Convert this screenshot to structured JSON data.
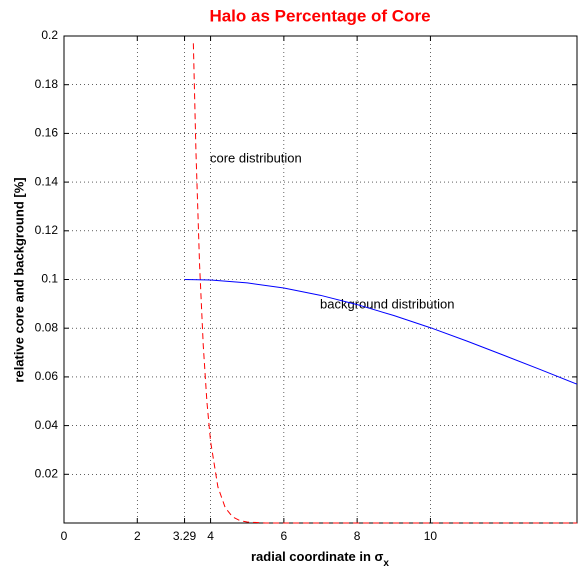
{
  "chart_data": {
    "type": "line",
    "title": "Halo as Percentage of Core",
    "xlabel": {
      "text": "radial coordinate in σ",
      "subscript": "x"
    },
    "ylabel": "relative core and background [%]",
    "xlim": [
      0,
      14
    ],
    "ylim": [
      0,
      0.2
    ],
    "xticks": [
      0,
      2,
      3.29,
      4,
      6,
      8,
      10
    ],
    "yticks": [
      0.02,
      0.04,
      0.06,
      0.08,
      0.1,
      0.12,
      0.14,
      0.16,
      0.18,
      0.2
    ],
    "grid": true,
    "annotations": [
      "core distribution",
      "background distribution"
    ],
    "series": [
      {
        "color": "#ff0000",
        "dash": true,
        "x": [
          3.53,
          3.6,
          3.7,
          3.8,
          3.9,
          4.0,
          4.2,
          4.4,
          4.6,
          4.8,
          5,
          5.5,
          6,
          8,
          10,
          12,
          14
        ],
        "values": [
          0.197,
          0.153,
          0.106,
          0.073,
          0.0498,
          0.0335,
          0.0148,
          0.0063,
          0.0025,
          0.001,
          0.0004,
          0,
          0,
          0,
          0,
          0,
          0
        ]
      },
      {
        "color": "#0000ff",
        "dash": false,
        "x": [
          3.29,
          4,
          5,
          6,
          7,
          8,
          9,
          10,
          11,
          12,
          13,
          14
        ],
        "values": [
          0.1,
          0.0998,
          0.0986,
          0.0965,
          0.0935,
          0.0897,
          0.0852,
          0.0802,
          0.0747,
          0.0689,
          0.063,
          0.057
        ]
      }
    ]
  }
}
